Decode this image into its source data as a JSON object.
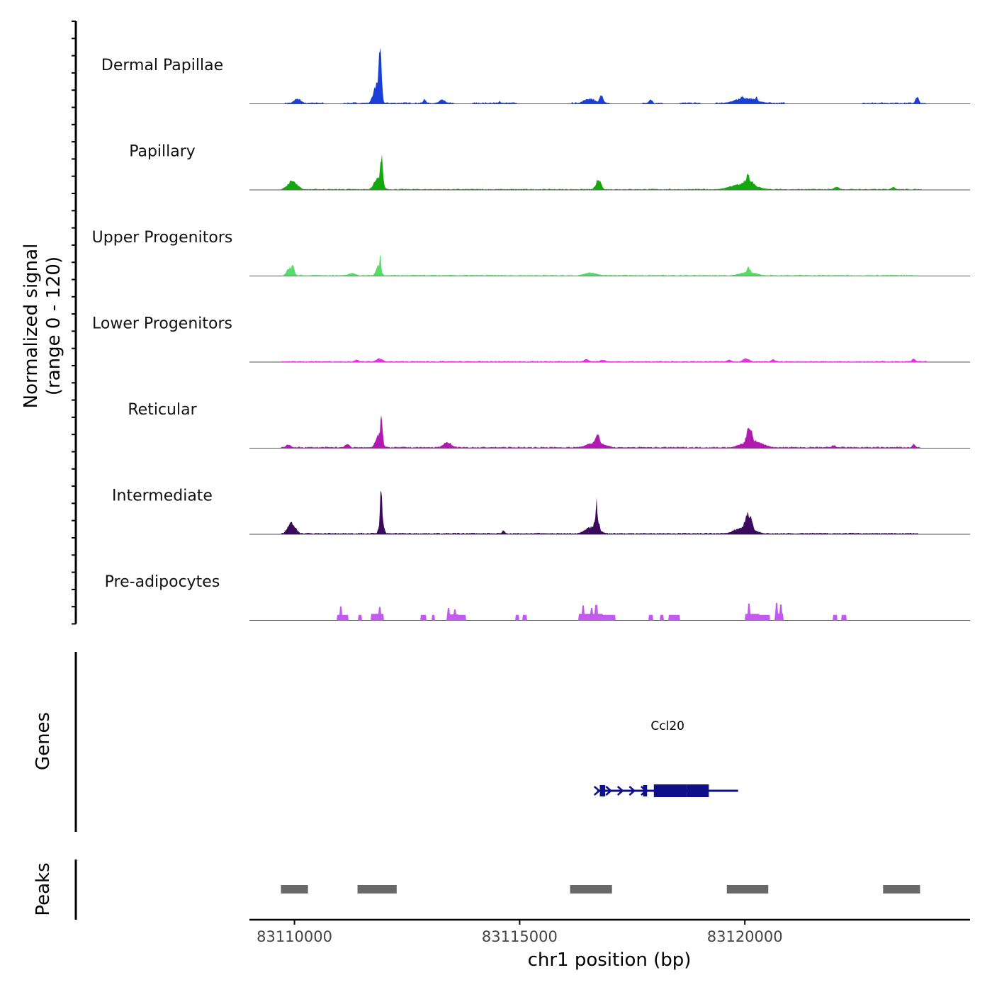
{
  "chart_data": {
    "type": "area",
    "title": "",
    "ylabel_line1": "Normalized signal",
    "ylabel_line2": "(range 0 - 120)",
    "ylim": [
      0,
      120
    ],
    "xlabel": "chr1 position (bp)",
    "xlim": [
      83109000,
      83125000
    ],
    "x_ticks": [
      83110000,
      83115000,
      83120000
    ],
    "x_tick_labels": [
      "83110000",
      "83115000",
      "83120000"
    ],
    "tracks": [
      {
        "name": "Dermal Papillae",
        "color": "#1a3fd6",
        "peaks": [
          [
            83109860,
            83110280,
            10
          ],
          [
            83111650,
            83112010,
            40
          ],
          [
            83111820,
            83111980,
            120
          ],
          [
            83112800,
            83112980,
            9
          ],
          [
            83113100,
            83113460,
            8
          ],
          [
            83114510,
            83114600,
            6
          ],
          [
            83116230,
            83116890,
            11
          ],
          [
            83116700,
            83116930,
            17
          ],
          [
            83117810,
            83118010,
            9
          ],
          [
            83119400,
            83120650,
            12
          ],
          [
            83119830,
            83120050,
            15
          ],
          [
            83120180,
            83120330,
            14
          ],
          [
            83123730,
            83123920,
            14
          ]
        ],
        "segments": [
          [
            83109780,
            83110640,
            2
          ],
          [
            83111080,
            83112600,
            2
          ],
          [
            83112600,
            83113560,
            2
          ],
          [
            83113950,
            83114950,
            2
          ],
          [
            83116150,
            83117000,
            2
          ],
          [
            83117730,
            83118200,
            2
          ],
          [
            83118540,
            83119010,
            2
          ],
          [
            83119350,
            83120890,
            2
          ],
          [
            83122600,
            83124020,
            2
          ]
        ]
      },
      {
        "name": "Papillary",
        "color": "#14a80e",
        "peaks": [
          [
            83109680,
            83110230,
            18
          ],
          [
            83111640,
            83112080,
            25
          ],
          [
            83111850,
            83112010,
            72
          ],
          [
            83116600,
            83116900,
            20
          ],
          [
            83119280,
            83120670,
            12
          ],
          [
            83119750,
            83120380,
            22
          ],
          [
            83119950,
            83120190,
            30
          ],
          [
            83121880,
            83122190,
            6
          ],
          [
            83123160,
            83123430,
            6
          ]
        ],
        "segments": [
          [
            83109750,
            83123950,
            1.5
          ]
        ]
      },
      {
        "name": "Upper Progenitors",
        "color": "#57dc6a",
        "peaks": [
          [
            83109730,
            83110080,
            18
          ],
          [
            83109870,
            83110050,
            22
          ],
          [
            83111050,
            83111500,
            6
          ],
          [
            83111730,
            83112000,
            22
          ],
          [
            83111860,
            83111950,
            50
          ],
          [
            83116200,
            83116950,
            7
          ],
          [
            83119580,
            83120550,
            8
          ],
          [
            83119950,
            83120220,
            18
          ]
        ],
        "segments": [
          [
            83109730,
            83123850,
            1.5
          ]
        ]
      },
      {
        "name": "Lower Progenitors",
        "color": "#e632e0",
        "peaks": [
          [
            83111250,
            83111500,
            5
          ],
          [
            83111700,
            83112070,
            8
          ],
          [
            83116350,
            83116600,
            7
          ],
          [
            83116700,
            83117000,
            5
          ],
          [
            83119520,
            83119780,
            5
          ],
          [
            83119830,
            83120230,
            7
          ],
          [
            83120500,
            83120760,
            5
          ],
          [
            83123650,
            83123850,
            7
          ]
        ],
        "segments": [
          [
            83109700,
            83124050,
            1.5
          ]
        ]
      },
      {
        "name": "Reticular",
        "color": "#b01ab0",
        "peaks": [
          [
            83109730,
            83110000,
            8
          ],
          [
            83111020,
            83111320,
            8
          ],
          [
            83111700,
            83112050,
            28
          ],
          [
            83111860,
            83112000,
            70
          ],
          [
            83113150,
            83113640,
            12
          ],
          [
            83116200,
            83117200,
            12
          ],
          [
            83116600,
            83116860,
            32
          ],
          [
            83119580,
            83120740,
            15
          ],
          [
            83119920,
            83120290,
            42
          ],
          [
            83121850,
            83122100,
            6
          ],
          [
            83123650,
            83123850,
            8
          ]
        ],
        "segments": [
          [
            83109700,
            83123900,
            2
          ]
        ]
      },
      {
        "name": "Intermediate",
        "color": "#3b0a5e",
        "peaks": [
          [
            83109720,
            83110160,
            22
          ],
          [
            83109830,
            83110010,
            30
          ],
          [
            83111820,
            83112040,
            40
          ],
          [
            83111860,
            83111990,
            100
          ],
          [
            83114560,
            83114720,
            8
          ],
          [
            83116220,
            83117000,
            15
          ],
          [
            83116570,
            83116840,
            40
          ],
          [
            83116650,
            83116760,
            70
          ],
          [
            83119470,
            83120530,
            15
          ],
          [
            83119870,
            83120280,
            42
          ]
        ],
        "segments": [
          [
            83109700,
            83123850,
            2
          ]
        ]
      },
      {
        "name": "Pre-adipocytes",
        "color": "#c25aee",
        "peaks": [],
        "segments": [
          [
            83110950,
            83111200,
            11
          ],
          [
            83111420,
            83111500,
            11
          ],
          [
            83111700,
            83111980,
            13
          ],
          [
            83112800,
            83112920,
            11
          ],
          [
            83113050,
            83113120,
            11
          ],
          [
            83113380,
            83113640,
            12
          ],
          [
            83113640,
            83113800,
            11
          ],
          [
            83114900,
            83114980,
            11
          ],
          [
            83115060,
            83115160,
            11
          ],
          [
            83116300,
            83116850,
            13
          ],
          [
            83116850,
            83117130,
            11
          ],
          [
            83117870,
            83117960,
            11
          ],
          [
            83118120,
            83118200,
            11
          ],
          [
            83118300,
            83118430,
            11
          ],
          [
            83118430,
            83118560,
            11
          ],
          [
            83120000,
            83120320,
            13
          ],
          [
            83120320,
            83120560,
            11
          ],
          [
            83120660,
            83120850,
            14
          ],
          [
            83121950,
            83122050,
            11
          ],
          [
            83122150,
            83122260,
            11
          ]
        ],
        "spikes": [
          [
            83111030,
            28
          ],
          [
            83111900,
            27
          ],
          [
            83113420,
            25
          ],
          [
            83113560,
            22
          ],
          [
            83116410,
            30
          ],
          [
            83116700,
            31
          ],
          [
            83116600,
            25
          ],
          [
            83120090,
            34
          ],
          [
            83120710,
            35
          ],
          [
            83120800,
            32
          ]
        ]
      }
    ],
    "genes_label": "Genes",
    "genes": [
      {
        "name": "Ccl20",
        "strand": "+",
        "start": 83116720,
        "end": 83119850,
        "exons": [
          [
            83116780,
            83116900
          ],
          [
            83117740,
            83117830
          ],
          [
            83117980,
            83118710
          ],
          [
            83118710,
            83119200
          ]
        ]
      }
    ],
    "peaks_label": "Peaks",
    "peak_regions": [
      [
        83109700,
        83110300
      ],
      [
        83111400,
        83112270
      ],
      [
        83116120,
        83117050
      ],
      [
        83119600,
        83120520
      ],
      [
        83123070,
        83123890
      ]
    ]
  }
}
